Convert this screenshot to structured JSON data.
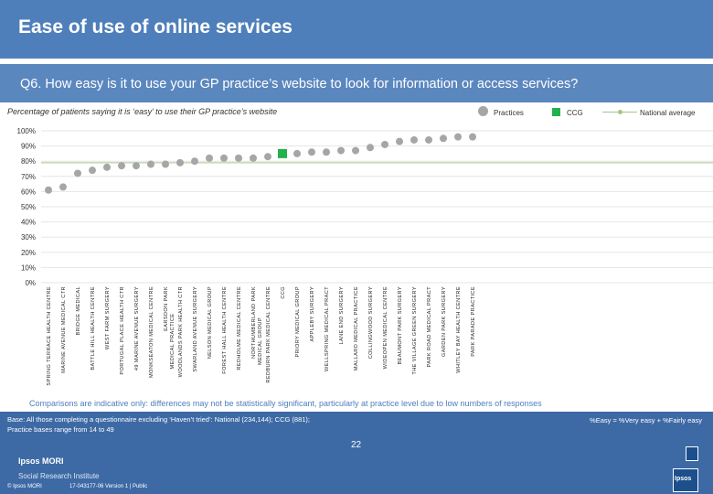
{
  "header": {
    "title": "Ease of use of online services"
  },
  "question": {
    "text": "Q6. How easy is it to use your GP practice’s website to look for information or access services?"
  },
  "subtitle": "Percentage of patients saying it is ‘easy’ to use their GP practice’s website",
  "legend": {
    "practices": "Practices",
    "ccg": "CCG",
    "national": "National average"
  },
  "colors": {
    "practice_point": "#a6a6a6",
    "ccg_point": "#22b14c",
    "national_line": "#a6c48a",
    "header_bg": "#4f7fba"
  },
  "note": "Comparisons are indicative only: differences may not be statistically significant, particularly at practice level due to low numbers of responses",
  "footer": {
    "base_line1": "Base: All those completing a questionnaire excluding ‘Haven’t tried’: National (234,144); CCG (881);",
    "base_line2": "Practice bases range from 14 to 49",
    "formula": "%Easy = %Very easy + %Fairly easy",
    "page_number": "22",
    "brand_line1": "Ipsos MORI",
    "brand_line2": "Social Research Institute",
    "copyright": "© Ipsos MORI",
    "version": "17-043177-06 Version 1 | Public",
    "logo": "Ipsos"
  },
  "chart_data": {
    "type": "scatter",
    "categories": [
      "SPRING TERRACE HEALTH CENTRE",
      "MARINE AVENUE MEDICAL CTR",
      "BRIDGE MEDICAL",
      "BATTLE HILL HEALTH CENTRE",
      "WEST FARM SURGERY",
      "PORTUGAL PLACE HEALTH CTR",
      "49 MARINE AVENUE SURGERY",
      "MONKSEATON MEDICAL CENTRE",
      "EARSDON PARK MEDICAL PRACTICE",
      "WOODLANDS PARK HEALTH CTR",
      "SWARLAND AVENUE SURGERY",
      "NELSON MEDICAL GROUP",
      "FOREST HALL HEALTH CENTRE",
      "REDHOLME MEDICAL CENTRE",
      "NORTHUMBERLAND PARK MEDICAL GROUP",
      "REDBURN PARK MEDICAL CENTRE",
      "CCG",
      "PRIORY MEDICAL GROUP",
      "APPLEBY SURGERY",
      "WELLSPRING MEDICAL PRACT",
      "LANE END SURGERY",
      "MALLARD MEDICAL PRACTICE",
      "COLLINGWOOD SURGERY",
      "WIDEOPEN MEDICAL CENTRE",
      "BEAUMONT PARK SURGERY",
      "THE VILLAGE GREEN SURGERY",
      "PARK ROAD MEDICAL PRACT",
      "GARDEN PARK SURGERY",
      "WHITLEY BAY HEALTH CENTRE",
      "PARK PARADE PRACTICE"
    ],
    "values": [
      61,
      63,
      72,
      74,
      76,
      77,
      77,
      78,
      78,
      79,
      80,
      82,
      82,
      82,
      82,
      83,
      85,
      85,
      86,
      86,
      87,
      87,
      89,
      91,
      93,
      94,
      94,
      95,
      96,
      96
    ],
    "ccg_category": "CCG",
    "national_average": 79,
    "ylim": [
      0,
      100
    ],
    "y_ticks": [
      "0%",
      "10%",
      "20%",
      "30%",
      "40%",
      "50%",
      "60%",
      "70%",
      "80%",
      "90%",
      "100%"
    ],
    "grid": true
  }
}
